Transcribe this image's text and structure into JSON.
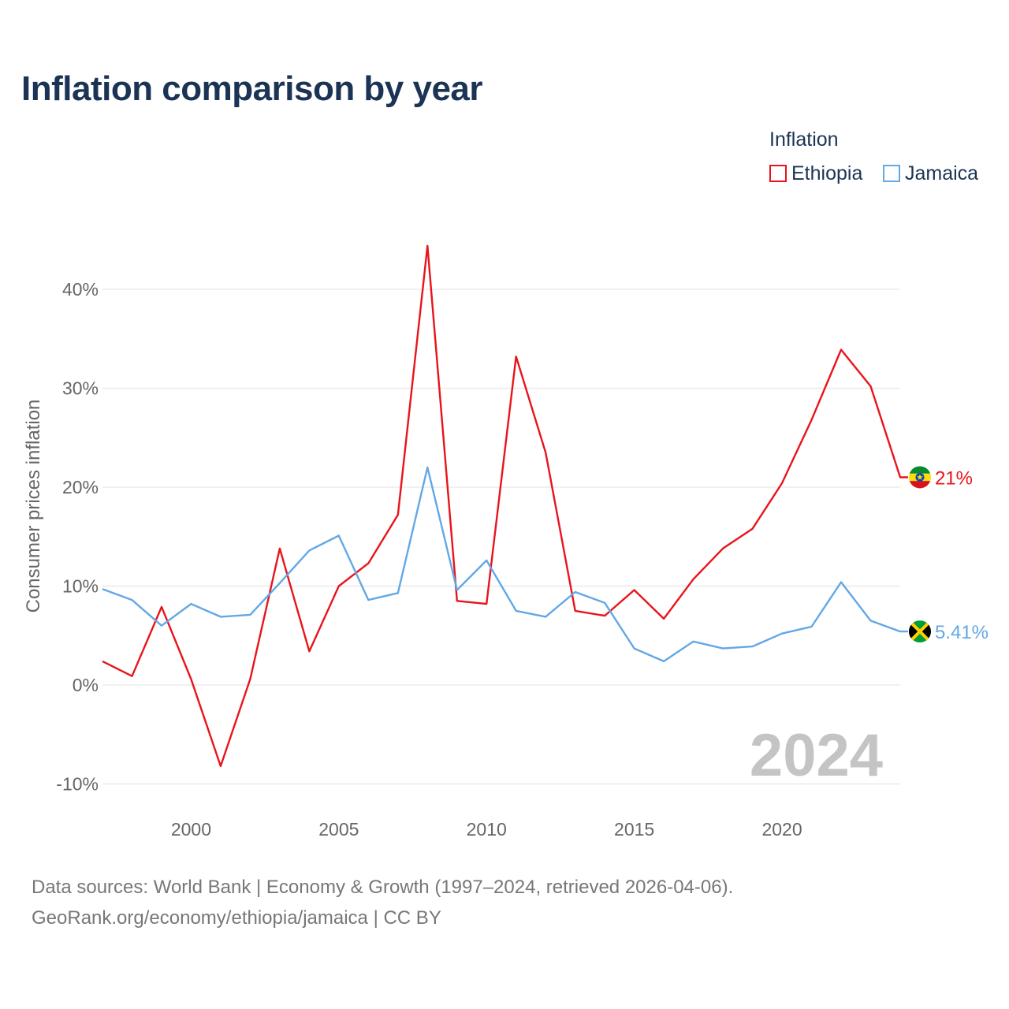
{
  "header": {
    "title": "Inflation comparison by year"
  },
  "legend": {
    "title": "Inflation",
    "items": [
      {
        "label": "Ethiopia",
        "color": "#e8141b"
      },
      {
        "label": "Jamaica",
        "color": "#62a8e5"
      }
    ]
  },
  "footer": {
    "source_line1": "Data sources: World Bank | Economy & Growth (1997–2024, retrieved 2026-04-06).",
    "source_line2": "GeoRank.org/economy/ethiopia/jamaica | CC BY"
  },
  "chart_data": {
    "type": "line",
    "title": "Inflation comparison by year",
    "xlabel": "",
    "ylabel": "Consumer prices inflation",
    "xlim": [
      1997,
      2024
    ],
    "ylim": [
      -10,
      44
    ],
    "x_ticks": [
      2000,
      2005,
      2010,
      2015,
      2020
    ],
    "y_ticks": [
      -10,
      0,
      10,
      20,
      30,
      40
    ],
    "y_tick_labels": [
      "-10%",
      "0%",
      "10%",
      "20%",
      "30%",
      "40%"
    ],
    "grid": true,
    "legend_position": "top-right",
    "year_watermark": "2024",
    "x": [
      1997,
      1998,
      1999,
      2000,
      2001,
      2002,
      2003,
      2004,
      2005,
      2006,
      2007,
      2008,
      2009,
      2010,
      2011,
      2012,
      2013,
      2014,
      2015,
      2016,
      2017,
      2018,
      2019,
      2020,
      2021,
      2022,
      2023,
      2024
    ],
    "series": [
      {
        "name": "Ethiopia",
        "color": "#e8141b",
        "end_label": "21%",
        "values": [
          2.4,
          0.9,
          7.9,
          0.6,
          -8.2,
          0.6,
          13.8,
          3.4,
          10.0,
          12.3,
          17.2,
          44.4,
          8.5,
          8.2,
          33.2,
          23.5,
          7.5,
          7.0,
          9.6,
          6.7,
          10.7,
          13.8,
          15.8,
          20.4,
          26.8,
          33.9,
          30.2,
          21.0
        ]
      },
      {
        "name": "Jamaica",
        "color": "#62a8e5",
        "end_label": "5.41%",
        "values": [
          9.7,
          8.6,
          6.0,
          8.2,
          6.9,
          7.1,
          10.3,
          13.6,
          15.1,
          8.6,
          9.3,
          22.0,
          9.6,
          12.6,
          7.5,
          6.9,
          9.4,
          8.3,
          3.7,
          2.4,
          4.4,
          3.7,
          3.9,
          5.2,
          5.9,
          10.4,
          6.5,
          5.41
        ]
      }
    ]
  }
}
